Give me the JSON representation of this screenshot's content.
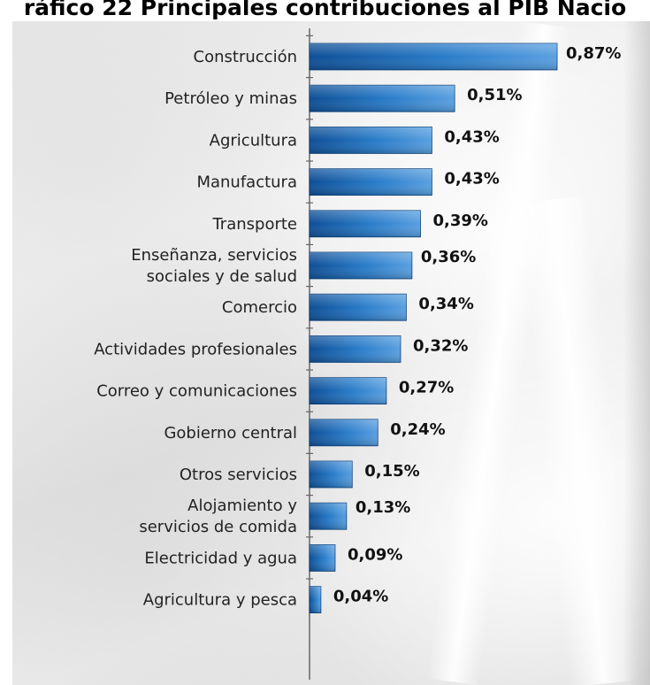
{
  "title": "ráfico 22 Principales contribuciones al PIB Nacio",
  "chart_data": {
    "type": "bar",
    "orientation": "horizontal",
    "categories": [
      [
        "Construcción"
      ],
      [
        "Petróleo y minas"
      ],
      [
        "Agricultura"
      ],
      [
        "Manufactura"
      ],
      [
        "Transporte"
      ],
      [
        "Enseñanza, servicios",
        "sociales y de salud"
      ],
      [
        "Comercio"
      ],
      [
        "Actividades profesionales"
      ],
      [
        "Correo y comunicaciones"
      ],
      [
        "Gobierno central"
      ],
      [
        "Otros servicios"
      ],
      [
        "Alojamiento y",
        "servicios de comida"
      ],
      [
        "Electricidad y agua"
      ],
      [
        "Agricultura y pesca"
      ]
    ],
    "values": [
      0.87,
      0.51,
      0.43,
      0.43,
      0.39,
      0.36,
      0.34,
      0.32,
      0.27,
      0.24,
      0.15,
      0.13,
      0.09,
      0.04
    ],
    "value_labels": [
      "0,87%",
      "0,51%",
      "0,43%",
      "0,43%",
      "0,39%",
      "0,36%",
      "0,34%",
      "0,32%",
      "0,27%",
      "0,24%",
      "0,15%",
      "0,13%",
      "0,09%",
      "0,04%"
    ],
    "xlim": [
      0,
      0.87
    ],
    "bar_color": "#1f6fb8",
    "grid": false,
    "legend": "none"
  }
}
